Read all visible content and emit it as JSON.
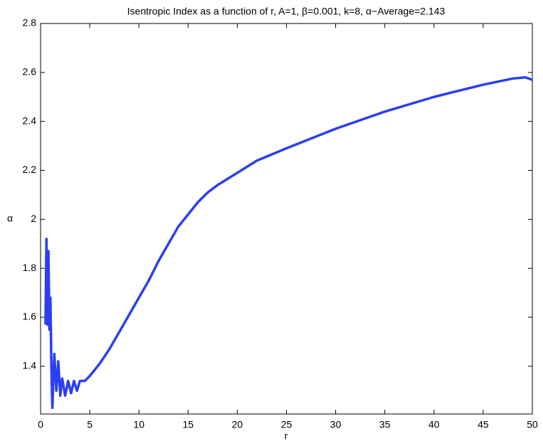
{
  "chart_data": {
    "type": "line",
    "title": "Isentropic Index as a function of r, A=1, β=0.001, k=8, α−Average=2.143",
    "x_label": "r",
    "y_label": "α",
    "x": [
      0.5,
      0.6,
      0.7,
      0.8,
      0.9,
      1.0,
      1.1,
      1.2,
      1.3,
      1.4,
      1.6,
      1.8,
      2.0,
      2.2,
      2.5,
      2.8,
      3.1,
      3.4,
      3.7,
      4.0,
      4.5,
      5,
      6,
      7,
      8,
      9,
      10,
      11,
      12,
      13,
      14,
      15,
      16,
      17,
      18,
      20,
      22,
      25,
      30,
      35,
      40,
      45,
      48,
      49.3,
      50
    ],
    "series": [
      {
        "name": "α",
        "color": "#2b3ff2",
        "values": [
          1.57,
          1.92,
          1.57,
          1.87,
          1.55,
          1.68,
          1.4,
          1.23,
          1.35,
          1.45,
          1.3,
          1.42,
          1.28,
          1.35,
          1.28,
          1.34,
          1.29,
          1.34,
          1.3,
          1.34,
          1.34,
          1.36,
          1.41,
          1.47,
          1.54,
          1.61,
          1.68,
          1.75,
          1.83,
          1.9,
          1.97,
          2.02,
          2.07,
          2.11,
          2.14,
          2.19,
          2.24,
          2.29,
          2.37,
          2.44,
          2.5,
          2.55,
          2.575,
          2.58,
          2.57
        ]
      }
    ],
    "xlim": [
      0,
      50
    ],
    "ylim": [
      1.205,
      2.8
    ],
    "xticks": [
      0,
      5,
      10,
      15,
      20,
      25,
      30,
      35,
      40,
      45,
      50
    ],
    "yticks": [
      1.4,
      1.6,
      1.8,
      2,
      2.2,
      2.4,
      2.6,
      2.8
    ],
    "grid": false
  }
}
